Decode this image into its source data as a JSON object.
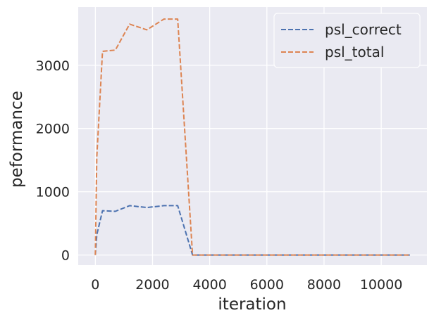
{
  "chart_data": {
    "type": "line",
    "xlabel": "iteration",
    "ylabel": "peformance",
    "xlim": [
      -600,
      11600
    ],
    "ylim": [
      -160,
      3920
    ],
    "xticks": [
      0,
      2000,
      4000,
      6000,
      8000,
      10000
    ],
    "xtick_labels": [
      "0",
      "2000",
      "4000",
      "6000",
      "8000",
      "10000"
    ],
    "yticks": [
      0,
      1000,
      2000,
      3000
    ],
    "ytick_labels": [
      "0",
      "1000",
      "2000",
      "3000"
    ],
    "grid": true,
    "legend_position": "top-right",
    "series": [
      {
        "name": "psl_correct",
        "color": "#4c72b0",
        "x": [
          0,
          50,
          250,
          700,
          1200,
          1800,
          2400,
          2880,
          3400,
          4000,
          5000,
          6000,
          7000,
          8000,
          9000,
          10000,
          11000
        ],
        "y": [
          0,
          320,
          700,
          690,
          780,
          750,
          780,
          780,
          0,
          0,
          0,
          0,
          0,
          0,
          0,
          0,
          0
        ]
      },
      {
        "name": "psl_total",
        "color": "#dd8452",
        "x": [
          0,
          50,
          250,
          700,
          1200,
          1800,
          2400,
          2880,
          3400,
          4000,
          5000,
          6000,
          7000,
          8000,
          9000,
          10000,
          11000
        ],
        "y": [
          0,
          1550,
          3220,
          3240,
          3650,
          3560,
          3730,
          3730,
          0,
          0,
          0,
          0,
          0,
          0,
          0,
          0,
          0
        ]
      }
    ]
  }
}
